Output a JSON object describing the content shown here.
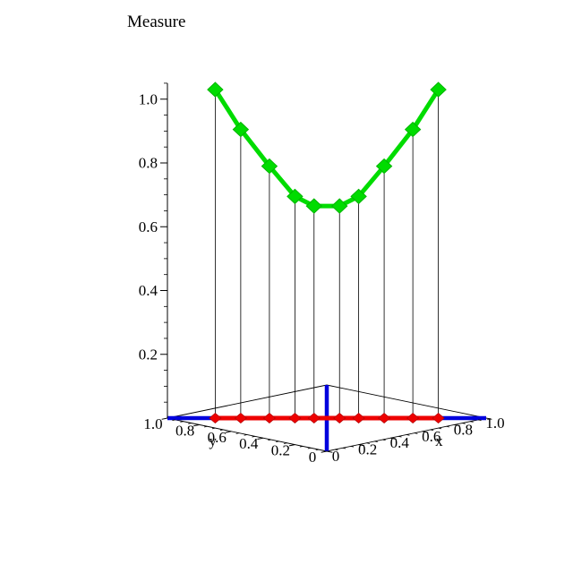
{
  "chart_data": {
    "type": "line",
    "title": "Measure",
    "description": "3D plot of a measure evaluated at points along the line x+y=1 of the unit square. Green diamond-marked curve shows the measure value (z); red diamond markers show the projection of each point on the base plane; thin black drop lines connect them; thick blue lines mark the diagonals x=y and x+y=1 of the base square.",
    "points": [
      {
        "x": 0.15,
        "y": 0.85,
        "z": 1.03
      },
      {
        "x": 0.23,
        "y": 0.77,
        "z": 0.905
      },
      {
        "x": 0.32,
        "y": 0.68,
        "z": 0.79
      },
      {
        "x": 0.4,
        "y": 0.6,
        "z": 0.695
      },
      {
        "x": 0.46,
        "y": 0.54,
        "z": 0.665
      },
      {
        "x": 0.54,
        "y": 0.46,
        "z": 0.665
      },
      {
        "x": 0.6,
        "y": 0.4,
        "z": 0.695
      },
      {
        "x": 0.68,
        "y": 0.32,
        "z": 0.79
      },
      {
        "x": 0.77,
        "y": 0.23,
        "z": 0.905
      },
      {
        "x": 0.85,
        "y": 0.15,
        "z": 1.03
      }
    ],
    "x_axis": {
      "label": "x",
      "range": [
        0,
        1
      ],
      "ticks": [
        0,
        0.2,
        0.4,
        0.6,
        0.8,
        1.0
      ]
    },
    "y_axis": {
      "label": "y",
      "range": [
        0,
        1
      ],
      "ticks": [
        0,
        0.2,
        0.4,
        0.6,
        0.8,
        1.0
      ]
    },
    "z_axis": {
      "label": "",
      "range": [
        0,
        1.05
      ],
      "ticks": [
        0.2,
        0.4,
        0.6,
        0.8,
        1.0
      ]
    },
    "legend": null,
    "grid": false,
    "colors": {
      "curve": "#00DC00",
      "curve_marker_edge": "#00B400",
      "projection": "#EE0000",
      "projection_marker_edge": "#B40000",
      "diagonals": "#0000DD",
      "frame": "#000000",
      "drop_lines": "#000000",
      "text": "#000000"
    }
  }
}
